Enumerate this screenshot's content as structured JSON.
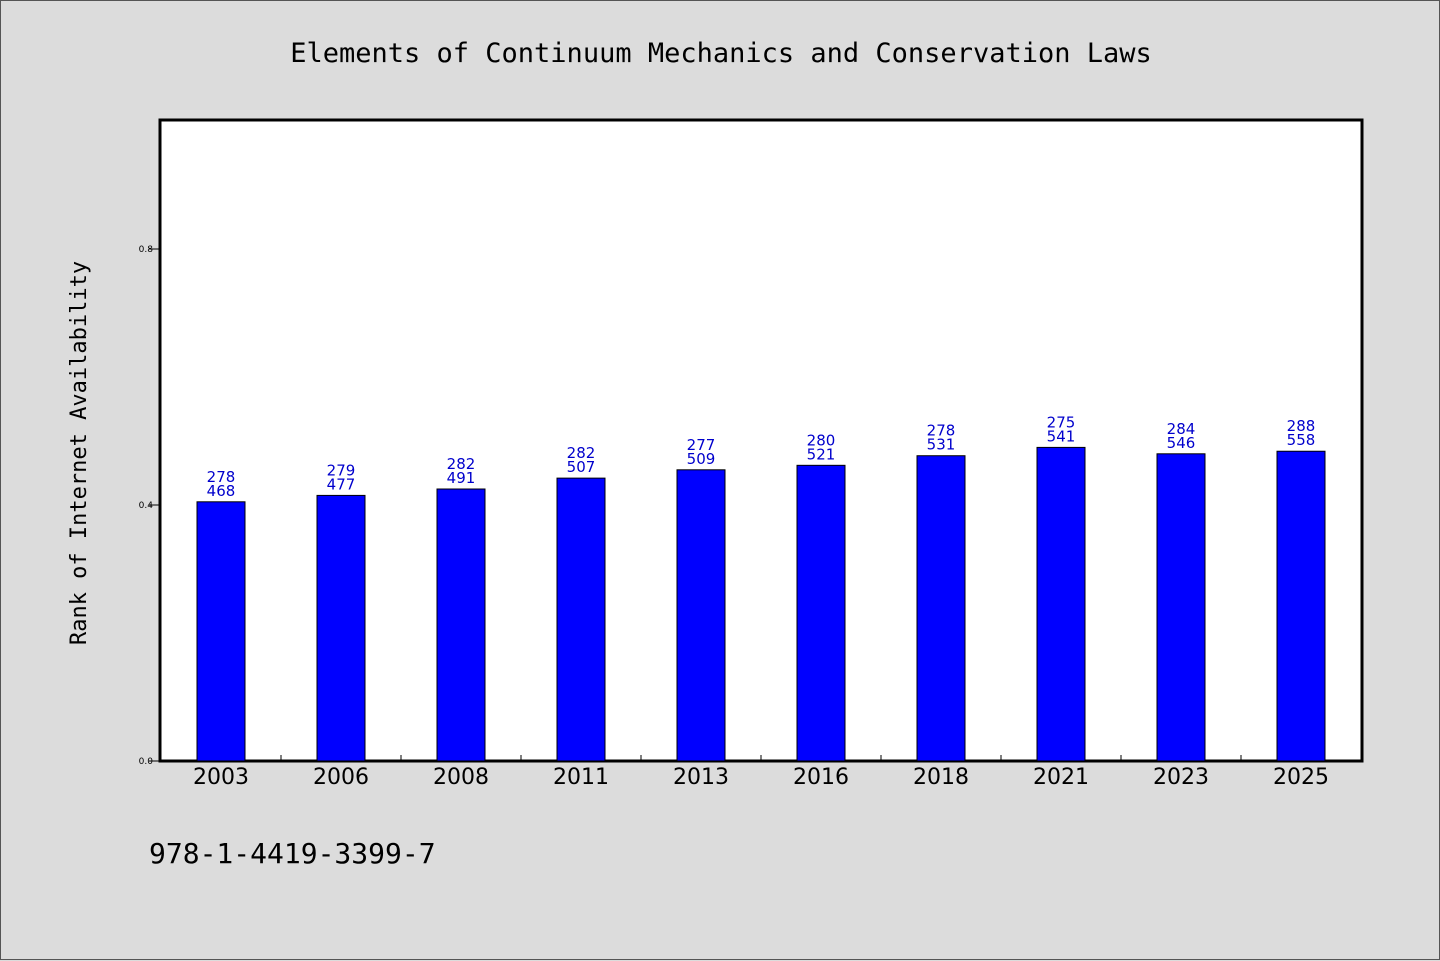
{
  "chart_data": {
    "type": "bar",
    "title": "Elements of Continuum Mechanics and Conservation Laws",
    "xlabel": "",
    "ylabel": "Rank of Internet Availability",
    "ylim": [
      0.0,
      1.0
    ],
    "yticks": [
      "0.0",
      "0.4",
      "0.8"
    ],
    "categories": [
      "2003",
      "2006",
      "2008",
      "2011",
      "2013",
      "2016",
      "2018",
      "2021",
      "2023",
      "2025"
    ],
    "values": [
      0.405,
      0.415,
      0.425,
      0.442,
      0.455,
      0.462,
      0.477,
      0.49,
      0.48,
      0.484
    ],
    "labels_top": [
      "278",
      "279",
      "282",
      "282",
      "277",
      "280",
      "278",
      "275",
      "284",
      "288"
    ],
    "labels_bottom": [
      "468",
      "477",
      "491",
      "507",
      "509",
      "521",
      "531",
      "541",
      "546",
      "558"
    ],
    "grid": false,
    "bar_color": "#0000ff",
    "label_color": "#0000cc"
  },
  "footer": {
    "isbn": "978-1-4419-3399-7"
  }
}
